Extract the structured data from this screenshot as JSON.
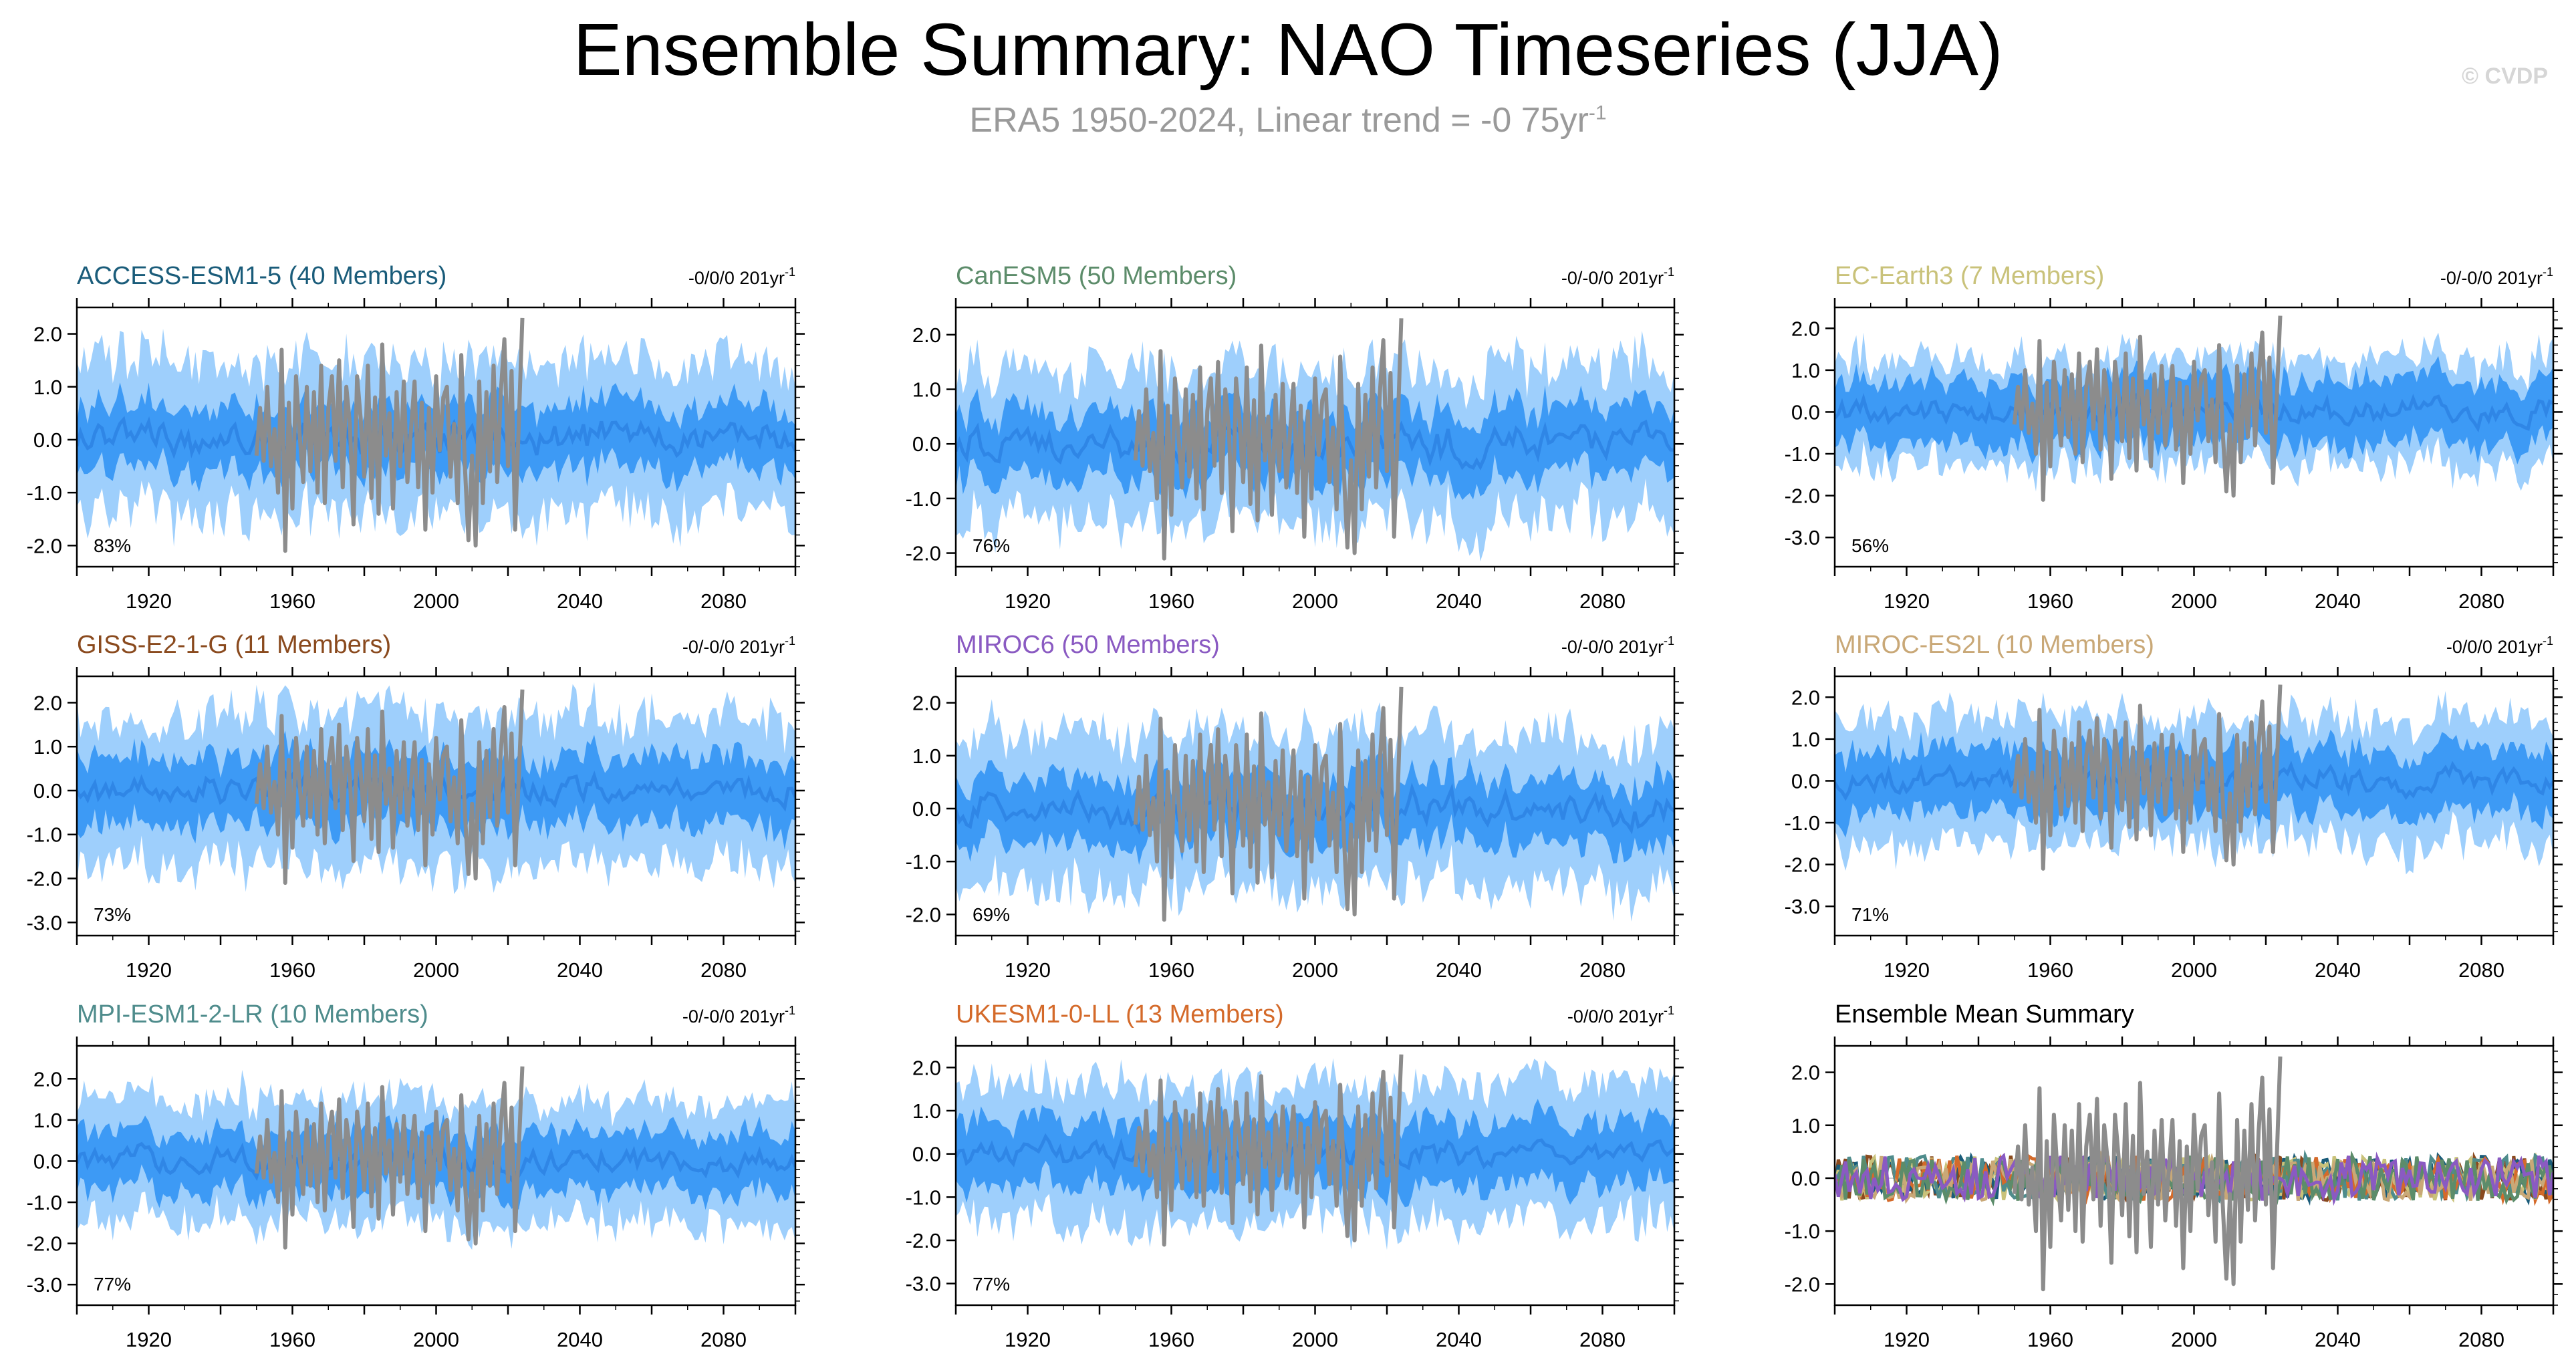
{
  "header": {
    "title": "Ensemble Summary: NAO Timeseries (JJA)",
    "subtitle_main": "ERA5 1950-2024, Linear trend = -0 75yr",
    "subtitle_sup": "-1",
    "watermark": "© CVDP"
  },
  "axes": {
    "x_ticks": [
      "1920",
      "1960",
      "2000",
      "2040",
      "2080"
    ],
    "x_tick_values": [
      1920,
      1960,
      2000,
      2040,
      2080
    ],
    "x_range": [
      1900,
      2100
    ]
  },
  "colors": {
    "outer_band": "#9ecffc",
    "inner_band": "#3d9af5",
    "ensemble_mean": "#2f86e6",
    "observations": "#8c8c8c"
  },
  "chart_data": [
    {
      "type": "area",
      "title": "ACCESS-ESM1-5 (40 Members)",
      "title_color": "#1a5c7a",
      "trend": "-0/0/0 201yr",
      "trend_sup": "-1",
      "percent": "83%",
      "yticks": [
        "2.0",
        "1.0",
        "0.0",
        "-1.0",
        "-2.0"
      ],
      "ytick_values": [
        2,
        1,
        0,
        -1,
        -2
      ],
      "ylim": [
        -2.4,
        2.5
      ],
      "outer_spread": 1.35,
      "inner_spread": 0.6,
      "xlabel": "",
      "ylabel": ""
    },
    {
      "type": "area",
      "title": "CanESM5 (50 Members)",
      "title_color": "#5c8c6a",
      "trend": "-0/-0/0 201yr",
      "trend_sup": "-1",
      "percent": "76%",
      "yticks": [
        "2.0",
        "1.0",
        "0.0",
        "-1.0",
        "-2.0"
      ],
      "ytick_values": [
        2,
        1,
        0,
        -1,
        -2
      ],
      "ylim": [
        -2.25,
        2.5
      ],
      "outer_spread": 1.3,
      "inner_spread": 0.6,
      "xlabel": "",
      "ylabel": ""
    },
    {
      "type": "area",
      "title": "EC-Earth3 (7 Members)",
      "title_color": "#c9c27a",
      "trend": "-0/-0/0 201yr",
      "trend_sup": "-1",
      "percent": "56%",
      "yticks": [
        "2.0",
        "1.0",
        "0.0",
        "-1.0",
        "-2.0",
        "-3.0"
      ],
      "ytick_values": [
        2,
        1,
        0,
        -1,
        -2,
        -3
      ],
      "ylim": [
        -3.7,
        2.5
      ],
      "outer_spread": 1.2,
      "inner_spread": 0.75,
      "xlabel": "",
      "ylabel": ""
    },
    {
      "type": "area",
      "title": "GISS-E2-1-G (11 Members)",
      "title_color": "#8a4a1e",
      "trend": "-0/-0/0 201yr",
      "trend_sup": "-1",
      "percent": "73%",
      "yticks": [
        "2.0",
        "1.0",
        "0.0",
        "-1.0",
        "-2.0",
        "-3.0"
      ],
      "ytick_values": [
        2,
        1,
        0,
        -1,
        -2,
        -3
      ],
      "ylim": [
        -3.3,
        2.6
      ],
      "outer_spread": 1.6,
      "inner_spread": 0.75,
      "xlabel": "",
      "ylabel": ""
    },
    {
      "type": "area",
      "title": "MIROC6 (50 Members)",
      "title_color": "#8a5ac2",
      "trend": "-0/-0/0 201yr",
      "trend_sup": "-1",
      "percent": "69%",
      "yticks": [
        "2.0",
        "1.0",
        "0.0",
        "-1.0",
        "-2.0"
      ],
      "ytick_values": [
        2,
        1,
        0,
        -1,
        -2
      ],
      "ylim": [
        -2.4,
        2.5
      ],
      "outer_spread": 1.35,
      "inner_spread": 0.6,
      "xlabel": "",
      "ylabel": ""
    },
    {
      "type": "area",
      "title": "MIROC-ES2L (10 Members)",
      "title_color": "#c9a877",
      "trend": "-0/0/0 201yr",
      "trend_sup": "-1",
      "percent": "71%",
      "yticks": [
        "2.0",
        "1.0",
        "0.0",
        "-1.0",
        "-2.0",
        "-3.0"
      ],
      "ytick_values": [
        2,
        1,
        0,
        -1,
        -2,
        -3
      ],
      "ylim": [
        -3.7,
        2.5
      ],
      "outer_spread": 1.4,
      "inner_spread": 0.75,
      "xlabel": "",
      "ylabel": ""
    },
    {
      "type": "area",
      "title": "MPI-ESM1-2-LR (10 Members)",
      "title_color": "#4f8c8c",
      "trend": "-0/-0/0 201yr",
      "trend_sup": "-1",
      "percent": "77%",
      "yticks": [
        "2.0",
        "1.0",
        "0.0",
        "-1.0",
        "-2.0",
        "-3.0"
      ],
      "ytick_values": [
        2,
        1,
        0,
        -1,
        -2,
        -3
      ],
      "ylim": [
        -3.5,
        2.8
      ],
      "outer_spread": 1.4,
      "inner_spread": 0.7,
      "xlabel": "",
      "ylabel": ""
    },
    {
      "type": "area",
      "title": "UKESM1-0-LL (13 Members)",
      "title_color": "#d46a2a",
      "trend": "-0/0/0 201yr",
      "trend_sup": "-1",
      "percent": "77%",
      "yticks": [
        "2.0",
        "1.0",
        "0.0",
        "-1.0",
        "-2.0",
        "-3.0"
      ],
      "ytick_values": [
        2,
        1,
        0,
        -1,
        -2,
        -3
      ],
      "ylim": [
        -3.5,
        2.5
      ],
      "outer_spread": 1.5,
      "inner_spread": 0.75,
      "xlabel": "",
      "ylabel": ""
    },
    {
      "type": "line",
      "title": "Ensemble Mean Summary",
      "title_color": "#000000",
      "trend": "",
      "trend_sup": "",
      "percent": "",
      "yticks": [
        "2.0",
        "1.0",
        "0.0",
        "-1.0",
        "-2.0"
      ],
      "ytick_values": [
        2,
        1,
        0,
        -1,
        -2
      ],
      "ylim": [
        -2.4,
        2.5
      ],
      "series_colors": [
        "#8a4a1e",
        "#1a5c7a",
        "#c9c27a",
        "#4f8c8c",
        "#d46a2a",
        "#c9a877",
        "#5c8c6a",
        "#8a5ac2"
      ],
      "xlabel": "",
      "ylabel": ""
    }
  ],
  "observations": {
    "name": "ERA5",
    "years": [
      1950,
      2024
    ],
    "x": [
      1950,
      1951,
      1952,
      1953,
      1954,
      1955,
      1956,
      1957,
      1958,
      1959,
      1960,
      1961,
      1962,
      1963,
      1964,
      1965,
      1966,
      1967,
      1968,
      1969,
      1970,
      1971,
      1972,
      1973,
      1974,
      1975,
      1976,
      1977,
      1978,
      1979,
      1980,
      1981,
      1982,
      1983,
      1984,
      1985,
      1986,
      1987,
      1988,
      1989,
      1990,
      1991,
      1992,
      1993,
      1994,
      1995,
      1996,
      1997,
      1998,
      1999,
      2000,
      2001,
      2002,
      2003,
      2004,
      2005,
      2006,
      2007,
      2008,
      2009,
      2010,
      2011,
      2012,
      2013,
      2014,
      2015,
      2016,
      2017,
      2018,
      2019,
      2020,
      2021,
      2022,
      2023,
      2024
    ],
    "values": [
      -0.3,
      0.6,
      -0.4,
      1.0,
      -0.5,
      0.2,
      -1.0,
      1.7,
      -2.1,
      0.7,
      -1.3,
      1.2,
      0.1,
      -0.8,
      1.0,
      -0.6,
      0.9,
      -1.0,
      1.4,
      -1.2,
      0.6,
      1.2,
      -0.4,
      1.5,
      -0.9,
      1.0,
      0.3,
      -1.6,
      1.2,
      0.4,
      -0.7,
      1.4,
      -1.1,
      0.8,
      -1.4,
      1.8,
      -0.3,
      0.5,
      -1.3,
      0.9,
      -0.5,
      1.1,
      -0.8,
      0.2,
      1.1,
      -0.9,
      0.7,
      -1.7,
      0.6,
      -1.0,
      1.2,
      -0.2,
      0.8,
      1.0,
      -0.7,
      0.3,
      -1.2,
      1.6,
      -0.5,
      -1.9,
      -0.3,
      -2.0,
      1.1,
      -1.2,
      0.9,
      -0.6,
      1.4,
      -0.8,
      0.9,
      1.9,
      -0.5,
      1.3,
      -1.7,
      0.3,
      2.3
    ]
  }
}
